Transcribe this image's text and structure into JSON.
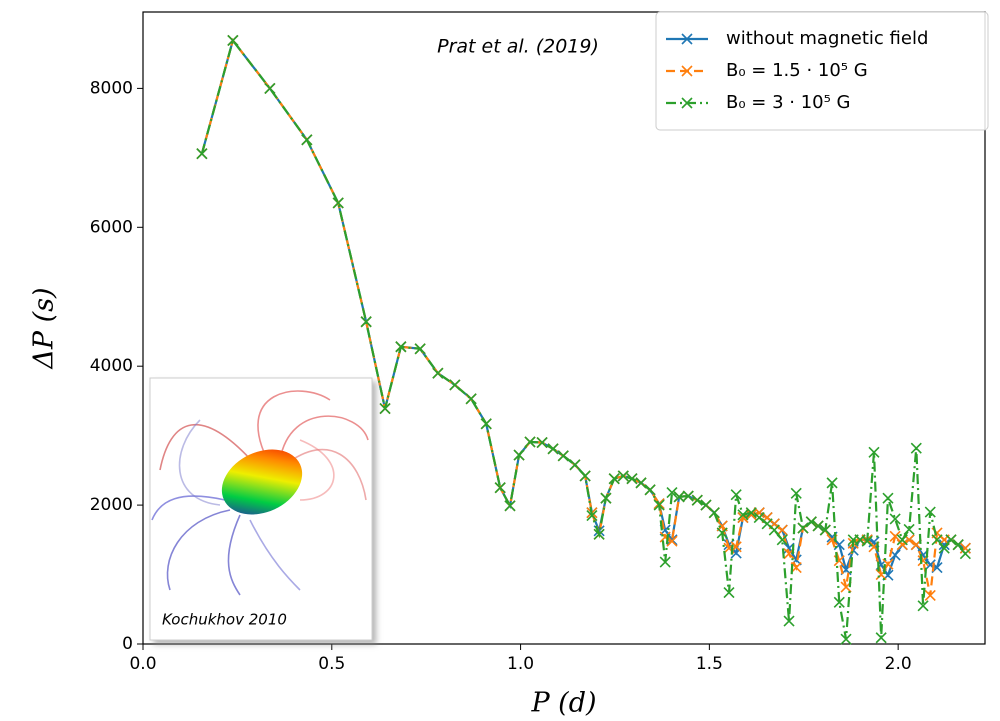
{
  "chart_data": {
    "type": "line",
    "xlabel": "P (d)",
    "ylabel": "ΔP (s)",
    "annotations": [
      "Prat et al. (2019)",
      "Kochukhov 2010"
    ],
    "xlim": [
      0,
      2.23
    ],
    "ylim": [
      0,
      9100
    ],
    "xticks": [
      {
        "value": 0,
        "label": "0.0"
      },
      {
        "value": 0.5,
        "label": "0.5"
      },
      {
        "value": 1,
        "label": "1.0"
      },
      {
        "value": 1.5,
        "label": "1.5"
      },
      {
        "value": 2,
        "label": "2.0"
      }
    ],
    "yticks": [
      0,
      2000,
      4000,
      6000,
      8000
    ],
    "legend": "upper right",
    "marker": "x",
    "x": [
      0.156,
      0.238,
      0.336,
      0.434,
      0.517,
      0.591,
      0.641,
      0.683,
      0.734,
      0.781,
      0.826,
      0.869,
      0.909,
      0.946,
      0.972,
      0.996,
      1.025,
      1.057,
      1.086,
      1.113,
      1.144,
      1.171,
      1.189,
      1.208,
      1.226,
      1.248,
      1.272,
      1.295,
      1.319,
      1.343,
      1.367,
      1.383,
      1.401,
      1.42,
      1.444,
      1.468,
      1.491,
      1.513,
      1.534,
      1.552,
      1.571,
      1.589,
      1.611,
      1.632,
      1.653,
      1.672,
      1.693,
      1.711,
      1.73,
      1.748,
      1.77,
      1.788,
      1.807,
      1.825,
      1.844,
      1.862,
      1.881,
      1.899,
      1.918,
      1.936,
      1.955,
      1.973,
      1.992,
      2.011,
      2.029,
      2.048,
      2.066,
      2.085,
      2.103,
      2.122,
      2.14,
      2.159,
      2.178
    ],
    "series": [
      {
        "name": "without magnetic field",
        "color": "#1f77b4",
        "linestyle": "solid",
        "values": [
          7060,
          8690,
          8000,
          7260,
          6350,
          4640,
          3390,
          4280,
          4250,
          3900,
          3730,
          3530,
          3170,
          2250,
          1990,
          2720,
          2910,
          2900,
          2810,
          2710,
          2580,
          2420,
          1890,
          1630,
          2100,
          2380,
          2420,
          2380,
          2320,
          2220,
          2020,
          1640,
          1500,
          2120,
          2130,
          2070,
          2000,
          1890,
          1700,
          1430,
          1310,
          1820,
          1860,
          1890,
          1820,
          1730,
          1640,
          1380,
          1210,
          1670,
          1760,
          1700,
          1640,
          1540,
          1430,
          1070,
          1350,
          1500,
          1500,
          1470,
          1140,
          990,
          1280,
          1430,
          1500,
          1430,
          1280,
          1140,
          1100,
          1430,
          1500,
          1430,
          1380
        ]
      },
      {
        "name": "B₀ = 1.5 · 10⁵ G",
        "color": "#ff7f0e",
        "linestyle": "dashed",
        "values": [
          7060,
          8690,
          8000,
          7260,
          6350,
          4640,
          3390,
          4280,
          4250,
          3900,
          3730,
          3530,
          3170,
          2250,
          1990,
          2720,
          2910,
          2900,
          2810,
          2710,
          2580,
          2420,
          1890,
          1580,
          2100,
          2380,
          2420,
          2380,
          2320,
          2220,
          2020,
          1540,
          1480,
          2120,
          2130,
          2070,
          2000,
          1890,
          1700,
          1380,
          1400,
          1820,
          1860,
          1890,
          1820,
          1730,
          1640,
          1300,
          1100,
          1670,
          1760,
          1700,
          1640,
          1500,
          1200,
          820,
          1450,
          1500,
          1500,
          1400,
          1000,
          1150,
          1550,
          1430,
          1500,
          1430,
          1200,
          700,
          1600,
          1500,
          1500,
          1430,
          1380
        ]
      },
      {
        "name": "B₀ = 3 · 10⁵ G",
        "color": "#2ca02c",
        "linestyle": "dashdot",
        "values": [
          7060,
          8690,
          8000,
          7260,
          6350,
          4640,
          3390,
          4280,
          4250,
          3900,
          3730,
          3530,
          3170,
          2250,
          1990,
          2720,
          2910,
          2900,
          2810,
          2710,
          2580,
          2420,
          1850,
          1580,
          2100,
          2380,
          2420,
          2380,
          2320,
          2220,
          2000,
          1180,
          2180,
          2120,
          2130,
          2070,
          2000,
          1890,
          1600,
          740,
          2150,
          1860,
          1890,
          1820,
          1730,
          1640,
          1500,
          330,
          2170,
          1670,
          1760,
          1700,
          1640,
          2320,
          600,
          70,
          1500,
          1500,
          1480,
          2760,
          90,
          2100,
          1800,
          1500,
          1650,
          2820,
          550,
          1900,
          1500,
          1380,
          1500,
          1430,
          1300
        ]
      }
    ]
  }
}
